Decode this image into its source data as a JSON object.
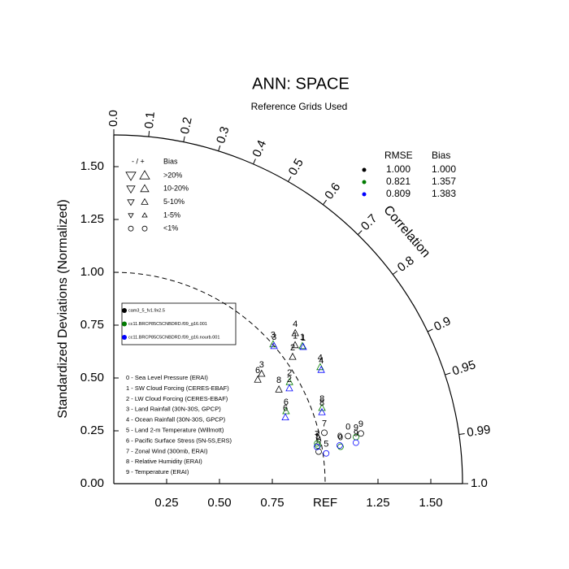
{
  "chart_data": {
    "type": "taylor",
    "title": "ANN: SPACE",
    "subtitle": "Reference Grids Used",
    "y_label": "Standardized Deviations (Normalized)",
    "corr_label": "Correlation",
    "ref_label": "REF",
    "xlim": [
      0,
      1.65
    ],
    "ylim": [
      0,
      1.65
    ],
    "ref_std": 1,
    "yticks": [
      {
        "value": 0,
        "label": "0.00"
      },
      0.25,
      {
        "value": 0.5,
        "label": "0.50"
      },
      0.75,
      {
        "value": 1,
        "label": "1.00"
      },
      1.25,
      {
        "value": 1.5,
        "label": "1.50"
      }
    ],
    "xticks": [
      0.25,
      {
        "value": 0.5,
        "label": "0.50"
      },
      0.75,
      1.25,
      {
        "value": 1.5,
        "label": "1.50"
      }
    ],
    "corrticks": [
      {
        "value": 0,
        "label": "0.0"
      },
      0.1,
      0.2,
      0.3,
      0.4,
      0.5,
      0.6,
      0.7,
      0.8,
      0.9,
      0.95,
      0.99,
      {
        "value": 1,
        "label": "1.0"
      }
    ],
    "variables": [
      "0 - Sea Level Pressure (ERAI)",
      "1 - SW Cloud Forcing (CERES-EBAF)",
      "2 - LW Cloud Forcing (CERES-EBAF)",
      "3 - Land Rainfall (30N-30S, GPCP)",
      "4 - Ocean Rainfall (30N-30S, GPCP)",
      "5 - Land 2-m Temperature (Willmott)",
      "6 - Pacific Surface Stress (5N-5S,ERS)",
      "7 - Zonal Wind (300mb, ERAI)",
      "8 - Relative Humidity (ERAI)",
      "9 - Temperature (ERAI)"
    ],
    "point_labels": [
      "0",
      "1",
      "2",
      "3",
      "4",
      "5",
      "6",
      "7",
      "8",
      "9"
    ],
    "markers": [
      "circle",
      "triangle",
      "triangle",
      "triangle",
      "triangle",
      "circle",
      "triangle",
      "circle",
      "triangle",
      "circle"
    ],
    "series": [
      {
        "name": "cam3_5_fv1.9x2.5",
        "color": "#000000",
        "std": [
          1.131,
          1.079,
          1.037,
          0.871,
          1.115,
          0.981,
          0.84,
          1.025,
          0.899,
          1.193
        ],
        "corr": [
          0.98,
          0.795,
          0.816,
          0.803,
          0.77,
          0.988,
          0.811,
          0.972,
          0.869,
          0.98
        ]
      },
      {
        "name": "cc11.BRCP85C5CNBDRD.f09_g16.001",
        "color": "#007a00",
        "std": [
          1.087,
          1.104,
          0.96,
          1.001,
          1.121,
          0.982,
          0.884,
          0.981,
          1.048,
          1.167
        ],
        "corr": [
          0.987,
          0.808,
          0.866,
          0.753,
          0.871,
          0.983,
          0.922,
          0.981,
          0.94,
          0.982
        ]
      },
      {
        "name": "cc11.BRCP85C5CNBDRD.f09_g16.nourb.001",
        "color": "#0000ff",
        "std": [
          1.084,
          1.105,
          0.945,
          0.999,
          1.119,
          1.015,
          0.87,
          0.977,
          1.041,
          1.162
        ],
        "corr": [
          0.986,
          0.811,
          0.879,
          0.759,
          0.877,
          0.99,
          0.933,
          0.984,
          0.946,
          0.986
        ]
      }
    ],
    "rmse": {
      "title": "RMSE",
      "values": [
        1,
        0.821,
        0.809
      ],
      "value_labels": [
        "1.000",
        "0.821",
        "0.809"
      ]
    },
    "bias": {
      "title": "Bias",
      "values": [
        1,
        1.357,
        1.383
      ],
      "value_labels": [
        "1.000",
        "1.357",
        "1.383"
      ]
    },
    "bias_key": {
      "header": "- / +",
      "title": "Bias",
      "levels": [
        ">20%",
        "10-20%",
        "5-10%",
        "1-5%",
        "<1%"
      ]
    }
  }
}
